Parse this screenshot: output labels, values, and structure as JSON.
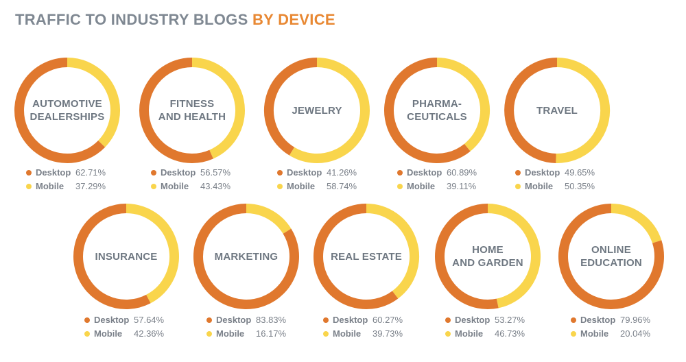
{
  "title": {
    "main": "TRAFFIC TO INDUSTRY BLOGS",
    "accent": "BY DEVICE"
  },
  "colors": {
    "desktop": "#e0782e",
    "mobile": "#f9d54c",
    "title_gray": "#7f8892",
    "title_accent": "#e88833"
  },
  "chart_data": {
    "type": "pie",
    "title": "TRAFFIC TO INDUSTRY BLOGS BY DEVICE",
    "series_names": [
      "Desktop",
      "Mobile"
    ],
    "charts": [
      {
        "category": "AUTOMOTIVE\nDEALERSHIPS",
        "desktop_label": "Desktop",
        "mobile_label": "Mobile",
        "desktop": 62.71,
        "mobile": 37.29,
        "desktop_text": "62.71%",
        "mobile_text": "37.29%"
      },
      {
        "category": "FITNESS\nAND HEALTH",
        "desktop_label": "Desktop",
        "mobile_label": "Mobile",
        "desktop": 56.57,
        "mobile": 43.43,
        "desktop_text": "56.57%",
        "mobile_text": "43.43%"
      },
      {
        "category": "JEWELRY",
        "desktop_label": "Desktop",
        "mobile_label": "Mobile",
        "desktop": 41.26,
        "mobile": 58.74,
        "desktop_text": "41.26%",
        "mobile_text": "58.74%"
      },
      {
        "category": "PHARMA-\nCEUTICALS",
        "desktop_label": "Desktop",
        "mobile_label": "Mobile",
        "desktop": 60.89,
        "mobile": 39.11,
        "desktop_text": "60.89%",
        "mobile_text": "39.11%"
      },
      {
        "category": "TRAVEL",
        "desktop_label": "Desktop",
        "mobile_label": "Mobile",
        "desktop": 49.65,
        "mobile": 50.35,
        "desktop_text": "49.65%",
        "mobile_text": "50.35%"
      },
      {
        "category": "INSURANCE",
        "desktop_label": "Desktop",
        "mobile_label": "Mobile",
        "desktop": 57.64,
        "mobile": 42.36,
        "desktop_text": "57.64%",
        "mobile_text": "42.36%"
      },
      {
        "category": "MARKETING",
        "desktop_label": "Desktop",
        "mobile_label": "Mobile",
        "desktop": 83.83,
        "mobile": 16.17,
        "desktop_text": "83.83%",
        "mobile_text": "16.17%"
      },
      {
        "category": "REAL ESTATE",
        "desktop_label": "Desktop",
        "mobile_label": "Mobile",
        "desktop": 60.27,
        "mobile": 39.73,
        "desktop_text": "60.27%",
        "mobile_text": "39.73%"
      },
      {
        "category": "HOME\nAND GARDEN",
        "desktop_label": "Desktop",
        "mobile_label": "Mobile",
        "desktop": 53.27,
        "mobile": 46.73,
        "desktop_text": "53.27%",
        "mobile_text": "46.73%"
      },
      {
        "category": "ONLINE\nEDUCATION",
        "desktop_label": "Desktop",
        "mobile_label": "Mobile",
        "desktop": 79.96,
        "mobile": 20.04,
        "desktop_text": "79.96%",
        "mobile_text": "20.04%"
      }
    ]
  }
}
